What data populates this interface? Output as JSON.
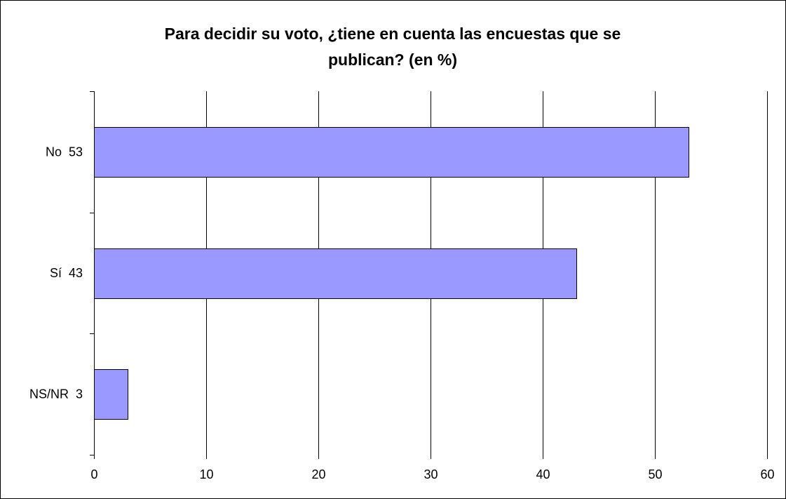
{
  "chart_data": {
    "type": "bar",
    "orientation": "horizontal",
    "title": "Para decidir su voto, ¿tiene en cuenta las encuestas que se publican? (en %)",
    "title_lines": [
      "Para decidir su voto, ¿tiene en cuenta las encuestas que se",
      "publican? (en %)"
    ],
    "categories": [
      "No  53",
      "Sí  43",
      "NS/NR  3"
    ],
    "values": [
      53,
      43,
      3
    ],
    "xlim": [
      0,
      60
    ],
    "x_ticks": [
      0,
      10,
      20,
      30,
      40,
      50,
      60
    ],
    "xlabel": "",
    "ylabel": "",
    "grid": true,
    "legend": "none",
    "colors": {
      "bar_fill": "#9999ff",
      "bar_stroke": "#000000",
      "grid": "#000000",
      "background": "#ffffff"
    }
  }
}
